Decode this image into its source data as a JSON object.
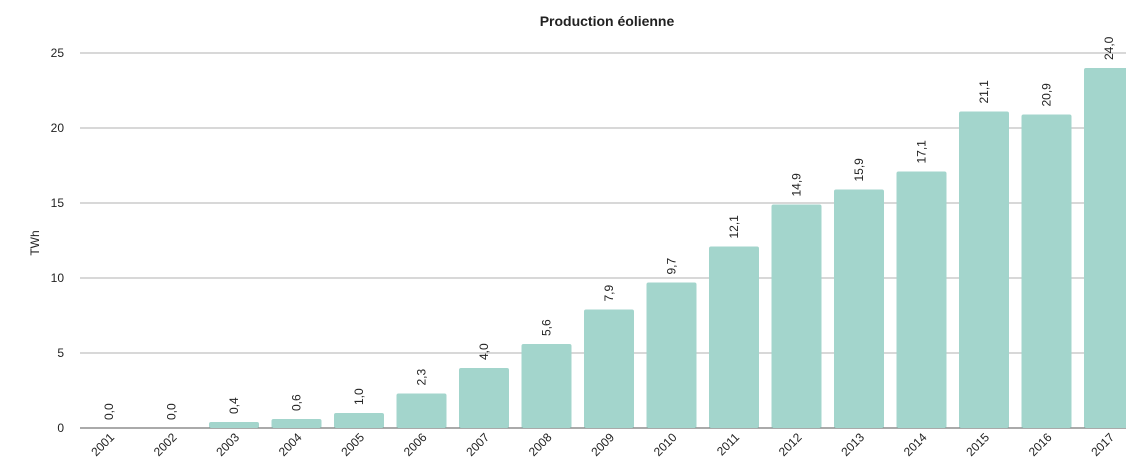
{
  "chart_data": {
    "type": "bar",
    "title": "Production éolienne",
    "ylabel": "TWh",
    "xlabel": "",
    "ylim": [
      0,
      25
    ],
    "yticks": [
      0,
      5,
      10,
      15,
      20,
      25
    ],
    "grid": true,
    "bar_color": "#a3d5cc",
    "categories": [
      "2001",
      "2002",
      "2003",
      "2004",
      "2005",
      "2006",
      "2007",
      "2008",
      "2009",
      "2010",
      "2011",
      "2012",
      "2013",
      "2014",
      "2015",
      "2016",
      "2017"
    ],
    "values": [
      0.0,
      0.0,
      0.4,
      0.6,
      1.0,
      2.3,
      4.0,
      5.6,
      7.9,
      9.7,
      12.1,
      14.9,
      15.9,
      17.1,
      21.1,
      20.9,
      24.0
    ],
    "data_labels": [
      "0,0",
      "0,0",
      "0,4",
      "0,6",
      "1,0",
      "2,3",
      "4,0",
      "5,6",
      "7,9",
      "9,7",
      "12,1",
      "14,9",
      "15,9",
      "17,1",
      "21,1",
      "20,9",
      "24,0"
    ]
  }
}
